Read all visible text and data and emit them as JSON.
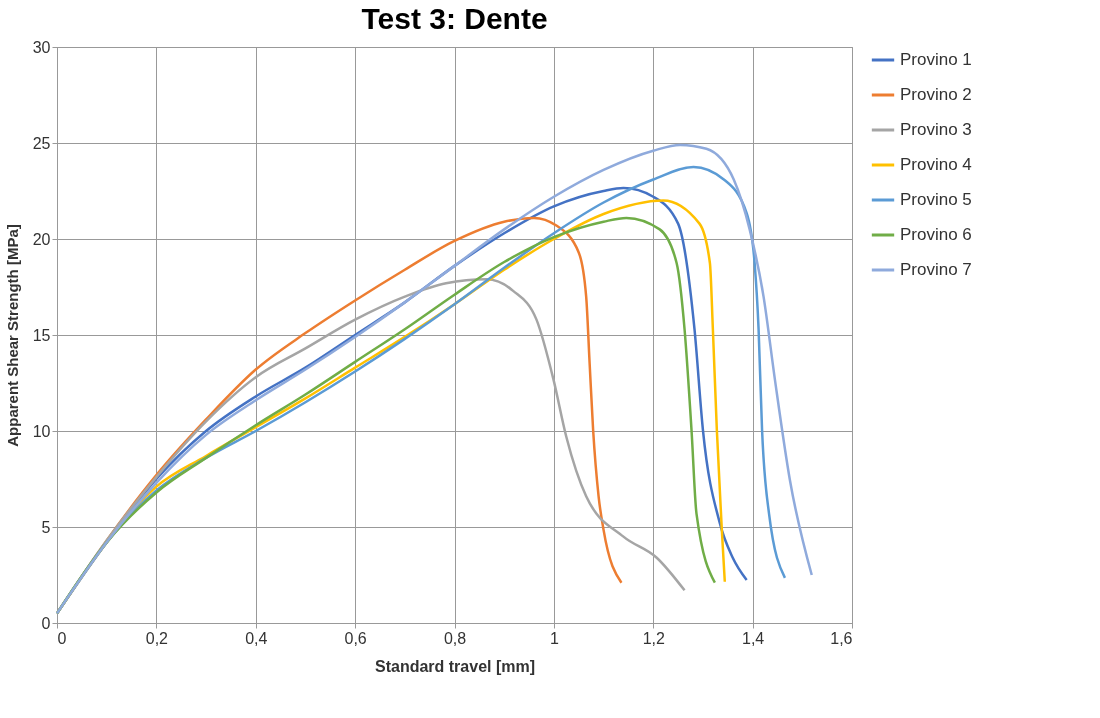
{
  "chart_data": {
    "type": "line",
    "title": "Test 3: Dente",
    "xlabel": "Standard travel [mm]",
    "ylabel": "Apparent Shear Strength [MPa]",
    "xlim": [
      0,
      1.6
    ],
    "ylim": [
      0,
      30
    ],
    "xticks": [
      0,
      {
        "value": 0.2,
        "label": "0,2"
      },
      {
        "value": 0.4,
        "label": "0,4"
      },
      {
        "value": 0.6,
        "label": "0,6"
      },
      {
        "value": 0.8,
        "label": "0,8"
      },
      1,
      {
        "value": 1.2,
        "label": "1,2"
      },
      {
        "value": 1.4,
        "label": "1,4"
      },
      {
        "value": 1.6,
        "label": "1,6"
      }
    ],
    "yticks": [
      0,
      5,
      10,
      15,
      20,
      25,
      30
    ],
    "grid": true,
    "legend": "right",
    "marker": "none",
    "line_style": "solid",
    "series": [
      {
        "name": "Provino 1",
        "color": "#4472c4",
        "x": [
          0,
          0.1,
          0.2,
          0.3,
          0.4,
          0.5,
          0.6,
          0.7,
          0.8,
          0.9,
          1.0,
          1.1,
          1.14,
          1.2,
          1.25,
          1.283,
          1.3,
          1.334,
          1.36,
          1.388
        ],
        "values": [
          0.5,
          4.2,
          7.5,
          10,
          11.8,
          13.3,
          15,
          16.7,
          18.6,
          20.3,
          21.7,
          22.5,
          22.65,
          22.2,
          20.8,
          15.3,
          10.05,
          5.2,
          3.4,
          2.24
        ]
      },
      {
        "name": "Provino 2",
        "color": "#ed7d31",
        "x": [
          0,
          0.1,
          0.2,
          0.3,
          0.4,
          0.5,
          0.6,
          0.7,
          0.8,
          0.9,
          0.96,
          1.005,
          1.05,
          1.065,
          1.072,
          1.079,
          1.09,
          1.1,
          1.136
        ],
        "values": [
          0.5,
          4.3,
          7.7,
          10.6,
          13.2,
          15.1,
          16.8,
          18.4,
          19.9,
          20.9,
          21.1,
          20.7,
          19.3,
          17,
          13.5,
          10.05,
          6.6,
          4.85,
          2.1
        ]
      },
      {
        "name": "Provino 3",
        "color": "#a5a5a5",
        "x": [
          0,
          0.1,
          0.2,
          0.3,
          0.4,
          0.5,
          0.6,
          0.7,
          0.783,
          0.864,
          0.918,
          0.965,
          0.999,
          1.025,
          1.065,
          1.14,
          1.207,
          1.263
        ],
        "values": [
          0.5,
          4.3,
          7.6,
          10.5,
          12.8,
          14.3,
          15.8,
          17,
          17.7,
          17.9,
          17.3,
          15.8,
          12.7,
          9.7,
          6.6,
          4.5,
          3.4,
          1.7
        ]
      },
      {
        "name": "Provino 4",
        "color": "#ffc000",
        "x": [
          0,
          0.1,
          0.2,
          0.3,
          0.4,
          0.5,
          0.6,
          0.7,
          0.8,
          0.9,
          1.0,
          1.1,
          1.22,
          1.293,
          1.314,
          1.32,
          1.328,
          1.338,
          1.344
        ],
        "values": [
          0.5,
          4.2,
          7.1,
          8.7,
          10.2,
          11.7,
          13.3,
          14.9,
          16.6,
          18.4,
          20,
          21.3,
          22,
          20.8,
          18.75,
          15.3,
          10.05,
          4.85,
          2.15
        ]
      },
      {
        "name": "Provino 5",
        "color": "#5b9bd5",
        "x": [
          0,
          0.1,
          0.2,
          0.3,
          0.4,
          0.5,
          0.6,
          0.7,
          0.8,
          0.9,
          1.0,
          1.1,
          1.2,
          1.281,
          1.342,
          1.388,
          1.404,
          1.412,
          1.419,
          1.433,
          1.465
        ],
        "values": [
          0.5,
          4.2,
          6.9,
          8.6,
          10,
          11.5,
          13.1,
          14.8,
          16.6,
          18.5,
          20.3,
          21.9,
          23.1,
          23.75,
          23.1,
          21.35,
          18.75,
          15.3,
          10.05,
          5.7,
          2.35
        ]
      },
      {
        "name": "Provino 6",
        "color": "#70ad47",
        "x": [
          0,
          0.1,
          0.2,
          0.3,
          0.4,
          0.5,
          0.6,
          0.7,
          0.8,
          0.9,
          1.0,
          1.1,
          1.146,
          1.213,
          1.247,
          1.263,
          1.277,
          1.287,
          1.324
        ],
        "values": [
          0.5,
          4.2,
          6.8,
          8.6,
          10.3,
          11.9,
          13.6,
          15.3,
          17.1,
          18.8,
          20.1,
          20.9,
          21.1,
          20.5,
          18.75,
          15.3,
          10.05,
          5.7,
          2.1
        ]
      },
      {
        "name": "Provino 7",
        "color": "#8faadc",
        "x": [
          0,
          0.1,
          0.2,
          0.3,
          0.4,
          0.5,
          0.6,
          0.7,
          0.8,
          0.9,
          1.0,
          1.1,
          1.2,
          1.254,
          1.307,
          1.362,
          1.394,
          1.422,
          1.445,
          1.475,
          1.519
        ],
        "values": [
          0.5,
          4.2,
          7.3,
          9.8,
          11.6,
          13.2,
          14.9,
          16.7,
          18.6,
          20.5,
          22.2,
          23.6,
          24.6,
          24.9,
          24.7,
          23.1,
          20.5,
          17,
          12.65,
          7.45,
          2.5
        ]
      }
    ]
  }
}
